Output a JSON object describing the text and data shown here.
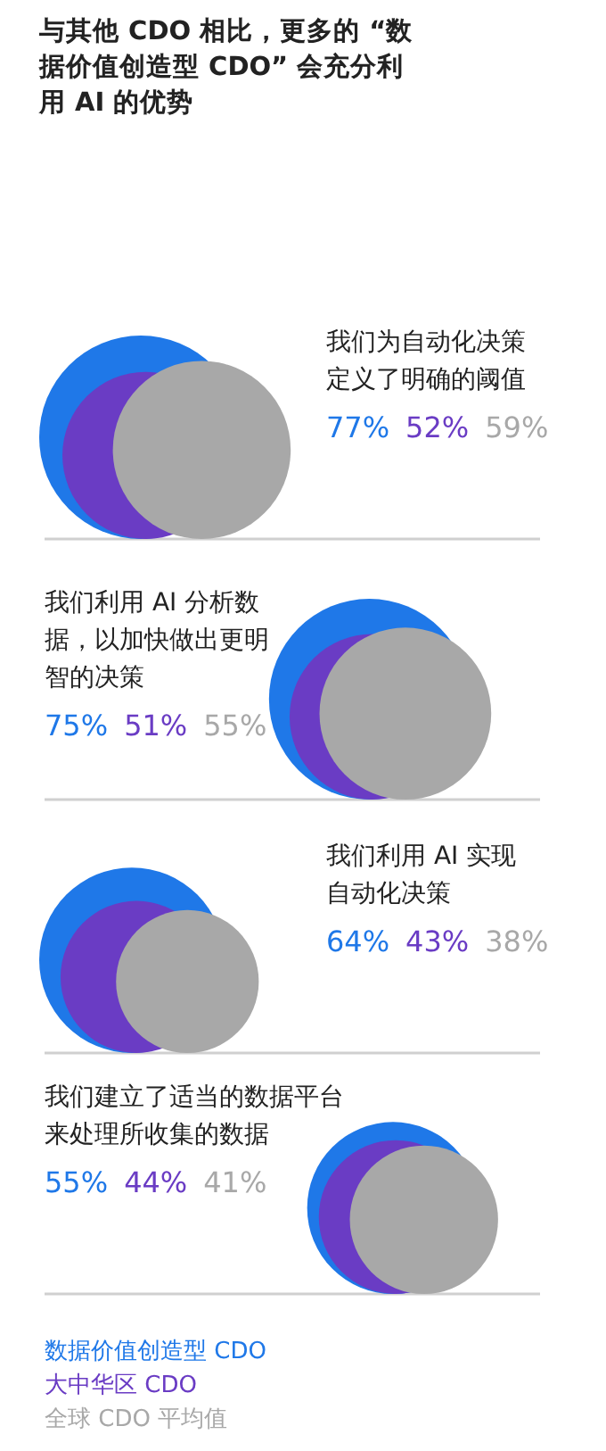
{
  "chart_data": {
    "type": "other",
    "title": "与其他 CDO 相比，更多的 “数据价值创造型 CDO” 会充分利用 AI 的优势",
    "categories": [
      "我们为自动化决策定义了明确的阈值",
      "我们利用 AI 分析数据，以加快做出更明智的决策",
      "我们利用 AI 实现自动化决策",
      "我们建立了适当的数据平台来处理所收集的数据"
    ],
    "series": [
      {
        "name": "数据价值创造型 CDO",
        "color": "#1f78e8",
        "values": [
          77,
          75,
          64,
          55
        ],
        "value_labels": [
          "77%",
          "75%",
          "64%",
          "55%"
        ]
      },
      {
        "name": "大中华区 CDO",
        "color": "#6a3cc4",
        "values": [
          52,
          51,
          43,
          44
        ],
        "value_labels": [
          "52%",
          "51%",
          "43%",
          "44%"
        ]
      },
      {
        "name": "全球 CDO 平均值",
        "color": "#a8a8a8",
        "values": [
          59,
          55,
          38,
          41
        ],
        "value_labels": [
          "59%",
          "55%",
          "38%",
          "41%"
        ]
      }
    ]
  }
}
